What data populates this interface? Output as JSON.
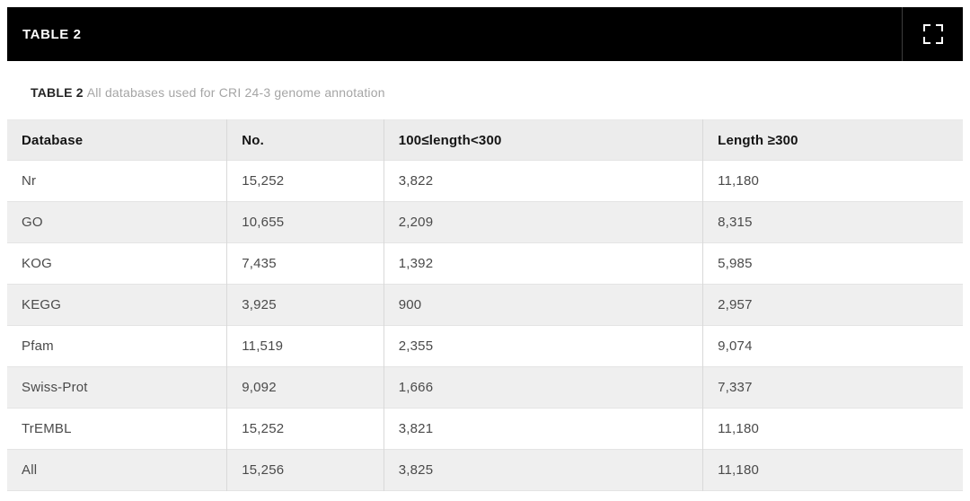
{
  "widget": {
    "titlebar": {
      "title": "TABLE 2",
      "expand_icon": "fullscreen-expand-icon"
    },
    "caption": {
      "label": "TABLE 2",
      "text": "All databases used for CRI 24-3 genome annotation"
    },
    "colors": {
      "titlebar_bg": "#000000",
      "titlebar_text": "#ffffff",
      "header_row_bg": "#ececec",
      "alt_row_bg": "#efefef",
      "cell_text": "#4a4a4a",
      "caption_text": "#a5a5a5",
      "divider": "#d9d9d9"
    }
  },
  "chart_data": {
    "type": "table",
    "title": "All databases used for CRI 24-3 genome annotation",
    "columns": [
      "Database",
      "No.",
      "100≤length<300",
      "Length ≥300"
    ],
    "rows": [
      [
        "Nr",
        "15,252",
        "3,822",
        "11,180"
      ],
      [
        "GO",
        "10,655",
        "2,209",
        "8,315"
      ],
      [
        "KOG",
        "7,435",
        "1,392",
        "5,985"
      ],
      [
        "KEGG",
        "3,925",
        "900",
        "2,957"
      ],
      [
        "Pfam",
        "11,519",
        "2,355",
        "9,074"
      ],
      [
        "Swiss-Prot",
        "9,092",
        "1,666",
        "7,337"
      ],
      [
        "TrEMBL",
        "15,252",
        "3,821",
        "11,180"
      ],
      [
        "All",
        "15,256",
        "3,825",
        "11,180"
      ]
    ]
  }
}
